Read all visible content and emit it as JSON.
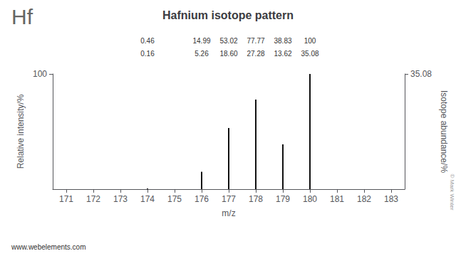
{
  "chart_data": {
    "type": "stem",
    "title": "Hafnium isotope pattern",
    "x": [
      174,
      176,
      177,
      178,
      179,
      180
    ],
    "series": [
      {
        "values": [
          0.46,
          14.99,
          53.02,
          77.77,
          38.83,
          100.0
        ],
        "value_labels": [
          "0.46",
          "14.99",
          "53.02",
          "77.77",
          "38.83",
          "100"
        ],
        "color": "#111111"
      },
      {
        "values": [
          0.16,
          5.26,
          18.6,
          27.28,
          13.62,
          35.08
        ],
        "value_labels": [
          "0.16",
          "5.26",
          "18.60",
          "27.28",
          "13.62",
          "35.08"
        ],
        "color": "#111111",
        "axis": "y2"
      }
    ],
    "data_labels": true,
    "xlabel": "m/z",
    "ylabel": "Relative intensity/%",
    "y2label": "Isotope abundance/%",
    "xlim": [
      170.5,
      183.5
    ],
    "xticks": [
      171,
      172,
      173,
      174,
      175,
      176,
      177,
      178,
      179,
      180,
      181,
      182,
      183
    ],
    "ylim": [
      0,
      100
    ],
    "yticks": [
      100
    ],
    "y2lim": [
      0,
      35.08
    ],
    "y2ticks": [
      35.08
    ],
    "grid": false,
    "annotations": [
      "Hf",
      "www.webelements.com",
      "© Mark Winter"
    ]
  }
}
